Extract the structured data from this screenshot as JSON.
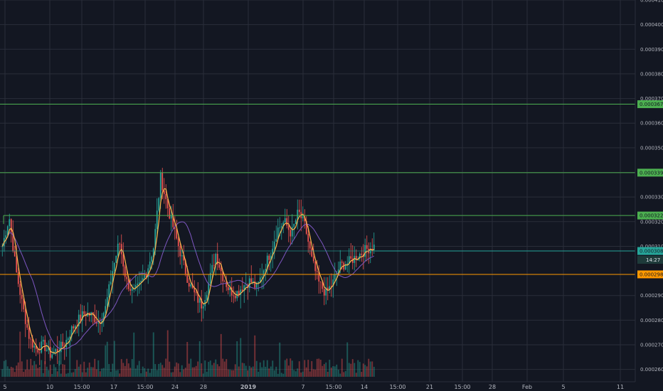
{
  "chart_data": {
    "type": "candlestick",
    "ylim": [
      0.000255,
      0.00041
    ],
    "grid": true,
    "y_ticks": [
      "0.0004100",
      "0.0004000",
      "0.0003900",
      "0.0003800",
      "0.0003700",
      "0.0003600",
      "0.0003500",
      "0.0003400",
      "0.0003300",
      "0.0003200",
      "0.0003100",
      "0.0002900",
      "0.0002800",
      "0.0002700",
      "0.0002600"
    ],
    "x_ticks": [
      "5",
      "10",
      "15:00",
      "17",
      "15:00",
      "24",
      "28",
      "2019",
      "7",
      "15:00",
      "14",
      "15:00",
      "21",
      "15:00",
      "28",
      "Feb",
      "5",
      "11"
    ],
    "horizontal_levels": [
      {
        "value": "0.0003677",
        "y": 0.0003677,
        "color": "#4caf50",
        "label_color": "#4caf50"
      },
      {
        "value": "0.0003399",
        "y": 0.0003399,
        "color": "#4caf50",
        "label_color": "#4caf50"
      },
      {
        "value": "0.0003225",
        "y": 0.0003225,
        "color": "#4caf50",
        "label_color": "#4caf50"
      },
      {
        "value": "0.0003081",
        "y": 0.0003081,
        "color": "#26a69a",
        "label_color": "#26a69a"
      },
      {
        "value": "0.0002986",
        "y": 0.0002986,
        "color": "#ff9800",
        "label_color": "#ff9800"
      }
    ],
    "countdown": "14:27",
    "colors": {
      "up": "#26a69a",
      "down": "#ef5350",
      "fast_ma": "#ffb74d",
      "slow_ma": "#7e57c2",
      "grid": "#2a2e39",
      "background": "#131722"
    },
    "price_path": [
      0.00031,
      0.000322,
      0.0003,
      0.000285,
      0.000272,
      0.000268,
      0.00027,
      0.000266,
      0.000268,
      0.00027,
      0.000276,
      0.00028,
      0.000283,
      0.000282,
      0.000279,
      0.000285,
      0.0003,
      0.000312,
      0.000296,
      0.000291,
      0.000294,
      0.0003,
      0.00031,
      0.000338,
      0.000326,
      0.000316,
      0.000306,
      0.000296,
      0.00029,
      0.000286,
      0.000295,
      0.000307,
      0.000298,
      0.000292,
      0.000291,
      0.000294,
      0.000296,
      0.000293,
      0.000301,
      0.000308,
      0.000317,
      0.00032,
      0.000315,
      0.000324,
      0.000318,
      0.000304,
      0.000295,
      0.000291,
      0.000295,
      0.000302,
      0.000303,
      0.000305,
      0.000307,
      0.000309,
      0.00031
    ]
  }
}
